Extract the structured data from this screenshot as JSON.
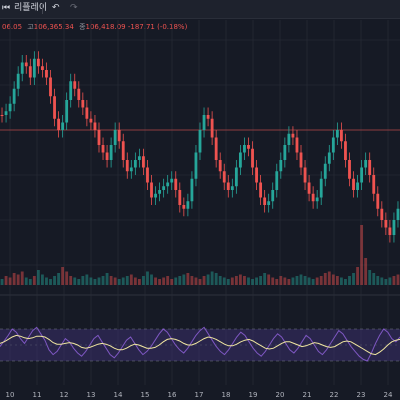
{
  "toolbar": {
    "replay_label": "리플레이",
    "undo_icon": "undo-icon",
    "redo_icon": "redo-icon",
    "replay_icon": "replay-icon"
  },
  "legend": {
    "open": "06.05",
    "high_label": "고",
    "high": "106,365.34",
    "low_label": "저",
    "low": "",
    "close_label": "종",
    "close": "106,418.09",
    "change": "-187.71 (-0.18%)"
  },
  "colors": {
    "background": "#161a25",
    "up": "#26a69a",
    "down": "#ef5350",
    "grid": "#2a2e39",
    "rsi_line": "#7e57c2",
    "rsi_ma": "#f0e6a0",
    "rsi_band": "#3b2f6b",
    "price_line": "#ef5350"
  },
  "chart_data": [
    {
      "type": "candlestick",
      "x": [
        "10",
        "11",
        "12",
        "13",
        "14",
        "15",
        "16",
        "17",
        "18",
        "19",
        "20",
        "21",
        "22",
        "23",
        "24"
      ],
      "close_series": [
        120,
        122,
        126,
        134,
        142,
        148,
        146,
        140,
        150,
        146,
        144,
        140,
        130,
        118,
        112,
        116,
        128,
        138,
        134,
        128,
        124,
        118,
        116,
        112,
        104,
        100,
        96,
        104,
        112,
        106,
        96,
        90,
        92,
        96,
        98,
        92,
        84,
        76,
        78,
        80,
        82,
        84,
        86,
        80,
        72,
        70,
        74,
        86,
        100,
        112,
        120,
        118,
        108,
        96,
        90,
        84,
        80,
        82,
        92,
        100,
        104,
        102,
        92,
        84,
        76,
        72,
        74,
        80,
        90,
        96,
        104,
        110,
        108,
        100,
        92,
        84,
        78,
        74,
        76,
        86,
        94,
        100,
        108,
        112,
        106,
        96,
        86,
        80,
        84,
        92,
        96,
        88,
        78,
        70,
        64,
        60,
        56,
        64,
        70
      ],
      "price_line": 112,
      "y_range": [
        40,
        160
      ]
    },
    {
      "type": "bar",
      "series": [
        {
          "values": [
            4,
            6,
            5,
            8,
            7,
            9,
            5,
            4,
            6,
            10,
            7,
            5,
            4,
            6,
            8,
            12,
            9,
            6,
            5,
            4,
            6,
            7,
            5,
            4,
            5,
            6,
            8,
            6,
            5,
            4,
            5,
            6,
            7,
            5,
            4,
            6,
            9,
            7,
            5,
            4,
            5,
            6,
            4,
            5,
            6,
            7,
            8,
            6,
            5,
            4,
            6,
            7,
            9,
            8,
            6,
            5,
            4,
            5,
            6,
            7,
            6,
            5,
            4,
            5,
            6,
            8,
            7,
            5,
            4,
            6,
            5,
            4,
            5,
            6,
            7,
            6,
            5,
            4,
            5,
            6,
            8,
            9,
            7,
            6,
            5,
            4,
            6,
            8,
            12,
            40,
            18,
            10,
            8,
            6,
            5,
            4,
            5,
            6,
            7
          ]
        }
      ]
    },
    {
      "type": "line",
      "series": [
        {
          "values": [
            48,
            55,
            62,
            70,
            66,
            58,
            52,
            60,
            68,
            72,
            64,
            56,
            44,
            38,
            42,
            50,
            58,
            54,
            46,
            40,
            36,
            42,
            50,
            58,
            62,
            54,
            46,
            38,
            34,
            40,
            48,
            56,
            60,
            52,
            44,
            38,
            42,
            48,
            56,
            64,
            70,
            66,
            58,
            50,
            44,
            40,
            46,
            54,
            62,
            68,
            72,
            64,
            56,
            48,
            42,
            38,
            44,
            52,
            60,
            66,
            62,
            54,
            46,
            40,
            36,
            42,
            50,
            58,
            64,
            60,
            52,
            44,
            40,
            46,
            54,
            62,
            58,
            50,
            42,
            38,
            44,
            52,
            60,
            68,
            64,
            56,
            48,
            42,
            36,
            32,
            30,
            40,
            52,
            62,
            70,
            66,
            58,
            54,
            60
          ]
        },
        {
          "values": [
            52,
            54,
            57,
            60,
            62,
            61,
            59,
            58,
            59,
            61,
            61,
            60,
            57,
            53,
            51,
            51,
            52,
            53,
            52,
            50,
            47,
            46,
            47,
            49,
            51,
            52,
            51,
            49,
            46,
            44,
            44,
            46,
            49,
            51,
            50,
            48,
            46,
            46,
            47,
            50,
            54,
            57,
            58,
            57,
            55,
            52,
            50,
            50,
            52,
            55,
            58,
            60,
            59,
            57,
            54,
            51,
            49,
            49,
            51,
            54,
            56,
            57,
            55,
            52,
            49,
            46,
            45,
            46,
            49,
            52,
            54,
            54,
            52,
            50,
            48,
            49,
            51,
            53,
            52,
            50,
            48,
            47,
            48,
            51,
            54,
            55,
            54,
            51,
            48,
            45,
            42,
            39,
            38,
            41,
            45,
            50,
            54,
            56,
            57
          ]
        }
      ],
      "y_range": [
        0,
        100
      ],
      "bands": [
        30,
        70
      ]
    }
  ]
}
